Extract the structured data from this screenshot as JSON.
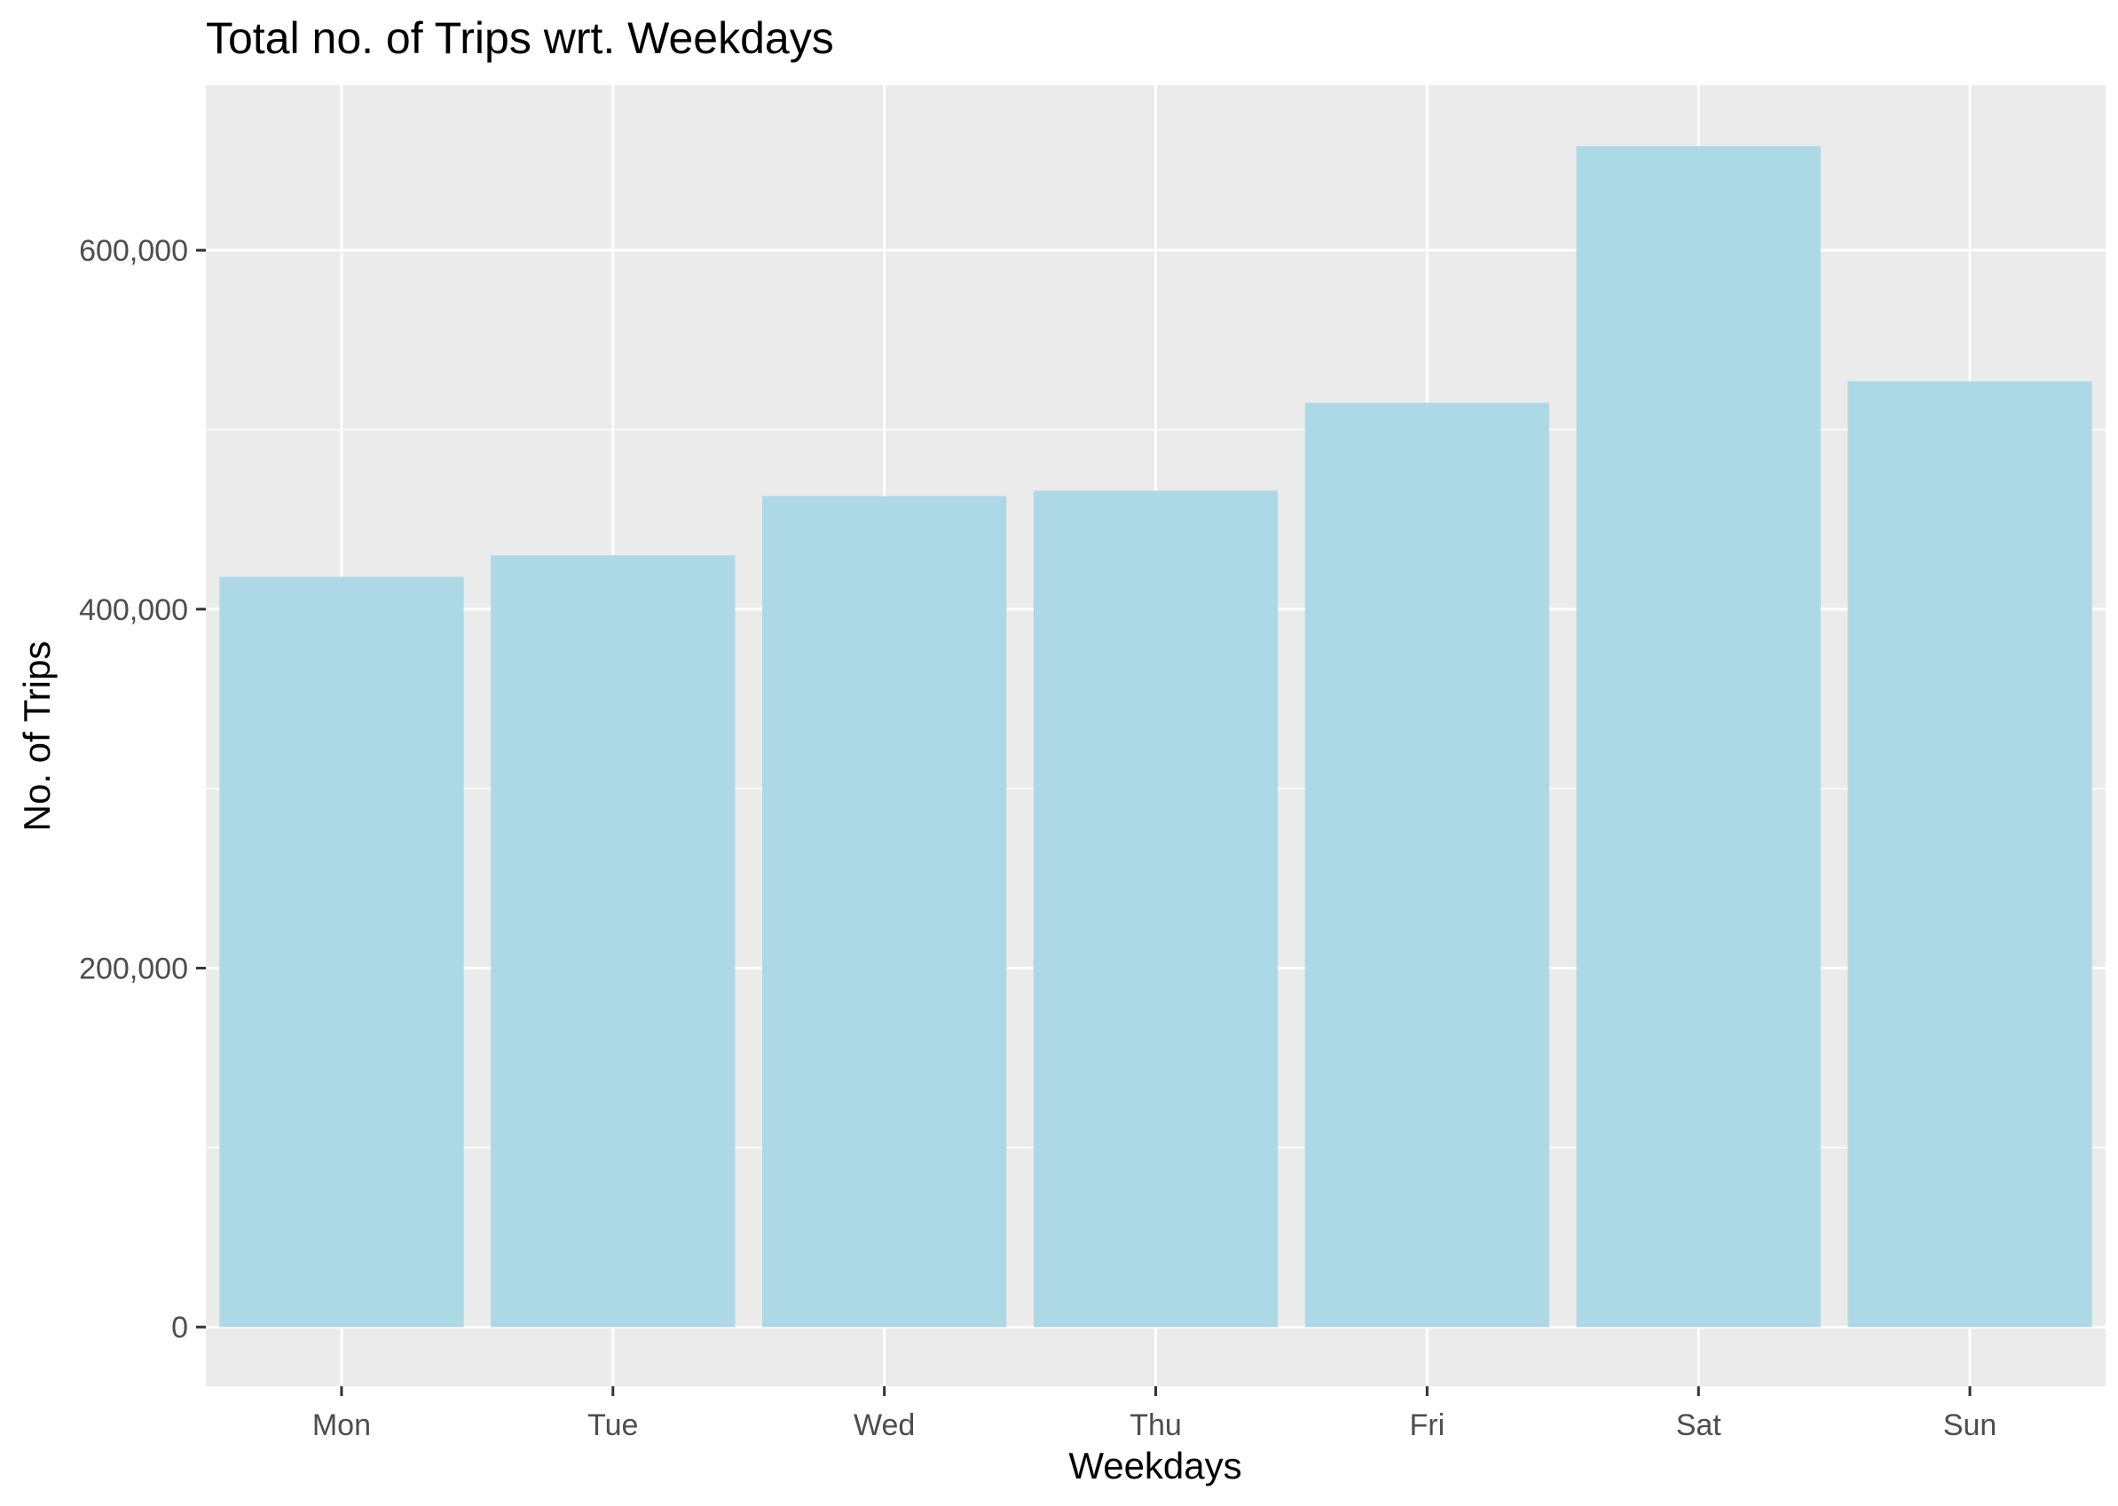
{
  "chart_data": {
    "type": "bar",
    "title": "Total no. of Trips wrt. Weekdays",
    "xlabel": "Weekdays",
    "ylabel": "No. of Trips",
    "categories": [
      "Mon",
      "Tue",
      "Wed",
      "Thu",
      "Fri",
      "Sat",
      "Sun"
    ],
    "values": [
      418000,
      430000,
      463000,
      466000,
      515000,
      658000,
      527000
    ],
    "ylim": [
      -33000,
      692000
    ],
    "y_ticks": [
      0,
      200000,
      400000,
      600000
    ],
    "y_tick_labels": [
      "0",
      "200,000",
      "400,000",
      "600,000"
    ],
    "y_minor_ticks": [
      100000,
      300000,
      500000
    ],
    "grid": true,
    "legend": "none",
    "colors": {
      "bar_fill": "#ADD8E6",
      "panel_background": "#EBEBEB",
      "grid": "#FFFFFF",
      "axis_text": "#4D4D4D",
      "tick": "#333333",
      "title": "#000000"
    }
  }
}
